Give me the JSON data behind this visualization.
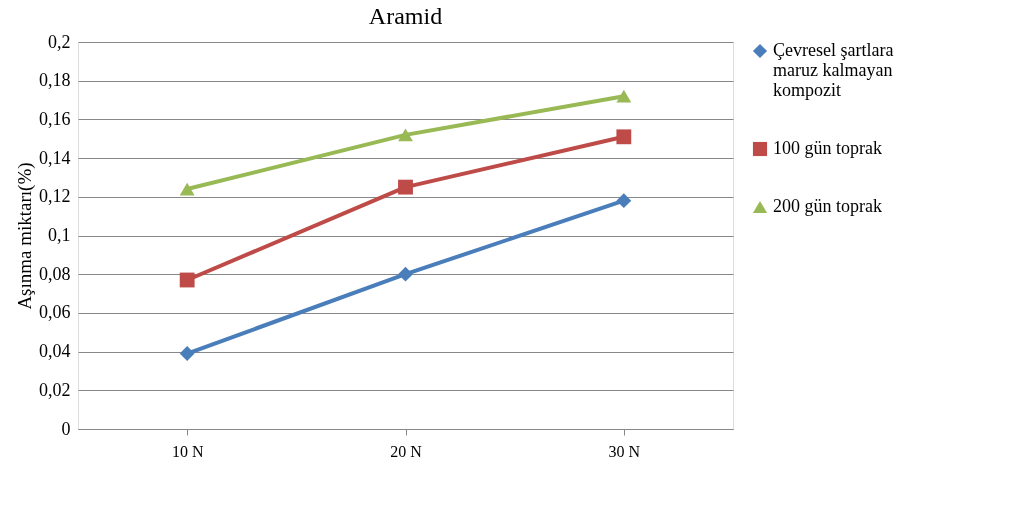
{
  "chart_data": {
    "type": "line",
    "title": "Aramid",
    "ylabel": "Aşınma miktarı(%)",
    "categories": [
      "10 N",
      "20 N",
      "30 N"
    ],
    "series": [
      {
        "name": "Çevresel şartlara maruz kalmayan kompozit",
        "color": "#4a7ebb",
        "marker": "diamond",
        "values": [
          0.039,
          0.08,
          0.118
        ]
      },
      {
        "name": "100  gün toprak",
        "color": "#be4b48",
        "marker": "square",
        "values": [
          0.077,
          0.125,
          0.151
        ]
      },
      {
        "name": "200 gün toprak",
        "color": "#98b954",
        "marker": "triangle",
        "values": [
          0.124,
          0.152,
          0.172
        ]
      }
    ],
    "ylim": [
      0,
      0.2
    ],
    "yticks": [
      {
        "value": 0,
        "label": "0"
      },
      {
        "value": 0.02,
        "label": "0,02"
      },
      {
        "value": 0.04,
        "label": "0,04"
      },
      {
        "value": 0.06,
        "label": "0,06"
      },
      {
        "value": 0.08,
        "label": "0,08"
      },
      {
        "value": 0.1,
        "label": "0,1"
      },
      {
        "value": 0.12,
        "label": "0,12"
      },
      {
        "value": 0.14,
        "label": "0,14"
      },
      {
        "value": 0.16,
        "label": "0,16"
      },
      {
        "value": 0.18,
        "label": "0,18"
      },
      {
        "value": 0.2,
        "label": "0,2"
      }
    ],
    "grid": "y",
    "legend": "right",
    "line_style": "solid"
  }
}
